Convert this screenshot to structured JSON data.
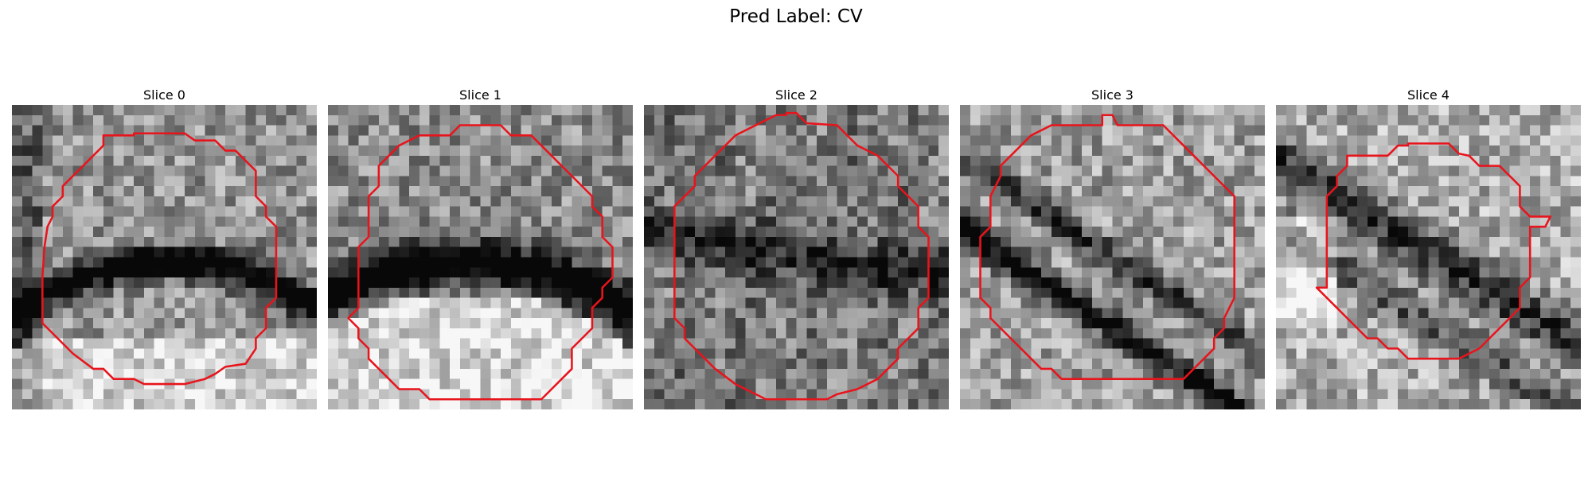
{
  "figure": {
    "title": "Pred Label: CV",
    "outline_color": "#e8141c",
    "colormap": "grayscale",
    "panels": [
      {
        "title": "Slice 0",
        "seed": 11,
        "band": "thin-dark-arc",
        "base_level": 0.58
      },
      {
        "title": "Slice 1",
        "seed": 23,
        "band": "thick-dark-arc",
        "base_level": 0.55
      },
      {
        "title": "Slice 2",
        "seed": 37,
        "band": "diffuse",
        "base_level": 0.48
      },
      {
        "title": "Slice 3",
        "seed": 51,
        "band": "double-diagonal",
        "base_level": 0.62
      },
      {
        "title": "Slice 4",
        "seed": 67,
        "band": "blurred-diagonal",
        "base_level": 0.68
      }
    ]
  }
}
